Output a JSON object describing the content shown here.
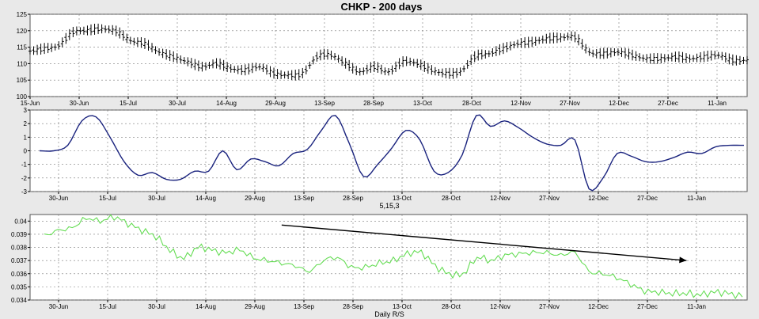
{
  "chart_data": [
    {
      "type": "line",
      "title": "CHKP - 200 days",
      "subtype": "ohlc",
      "x_tick_labels": [
        "15-Jun",
        "30-Jun",
        "15-Jul",
        "30-Jul",
        "14-Aug",
        "29-Aug",
        "13-Sep",
        "28-Sep",
        "13-Oct",
        "28-Oct",
        "12-Nov",
        "27-Nov",
        "12-Dec",
        "27-Dec",
        "11-Jan"
      ],
      "ylim": [
        100,
        125
      ],
      "y_ticks": [
        100,
        105,
        110,
        115,
        120,
        125
      ],
      "grid": true,
      "series": [
        {
          "x": [
            0.0,
            0.02,
            0.04,
            0.06,
            0.08,
            0.1,
            0.12,
            0.14,
            0.16,
            0.18,
            0.2,
            0.22,
            0.24,
            0.26,
            0.28,
            0.3,
            0.32,
            0.34,
            0.36,
            0.38,
            0.4,
            0.42,
            0.44,
            0.46,
            0.48,
            0.5,
            0.52,
            0.54,
            0.56,
            0.58,
            0.6,
            0.62,
            0.64,
            0.66,
            0.68,
            0.7,
            0.72,
            0.74,
            0.76,
            0.78,
            0.8,
            0.82,
            0.84,
            0.86,
            0.88,
            0.9,
            0.92,
            0.94,
            0.96,
            0.98,
            1.0
          ],
          "values": [
            113.8,
            114.5,
            115.5,
            119.5,
            120.0,
            120.5,
            119.8,
            117.0,
            116.0,
            113.5,
            112.0,
            110.5,
            109.0,
            110.0,
            108.5,
            108.0,
            109.0,
            107.0,
            106.5,
            107.0,
            112.0,
            112.5,
            110.0,
            107.5,
            109.0,
            107.5,
            110.5,
            110.0,
            108.0,
            107.0,
            107.5,
            112.0,
            113.0,
            114.5,
            116.0,
            116.5,
            117.5,
            117.8,
            118.0,
            113.5,
            113.0,
            113.5,
            112.5,
            111.5,
            111.5,
            112.0,
            111.5,
            112.0,
            112.5,
            111.0,
            111.0
          ]
        }
      ]
    },
    {
      "type": "line",
      "xlabel": "5,15,3",
      "x_tick_labels": [
        "30-Jun",
        "15-Jul",
        "30-Jul",
        "14-Aug",
        "29-Aug",
        "13-Sep",
        "28-Sep",
        "13-Oct",
        "28-Oct",
        "12-Nov",
        "27-Nov",
        "12-Dec",
        "27-Dec",
        "11-Jan"
      ],
      "ylim": [
        -3,
        3
      ],
      "y_ticks": [
        -3,
        -2,
        -1,
        0,
        1,
        2,
        3
      ],
      "grid": true,
      "series": [
        {
          "x": [
            0.0,
            0.02,
            0.04,
            0.06,
            0.08,
            0.1,
            0.12,
            0.14,
            0.16,
            0.18,
            0.2,
            0.22,
            0.24,
            0.26,
            0.28,
            0.3,
            0.32,
            0.34,
            0.36,
            0.38,
            0.4,
            0.42,
            0.44,
            0.46,
            0.48,
            0.5,
            0.52,
            0.54,
            0.56,
            0.58,
            0.6,
            0.62,
            0.64,
            0.66,
            0.68,
            0.7,
            0.72,
            0.74,
            0.76,
            0.78,
            0.8,
            0.82,
            0.84,
            0.86,
            0.88,
            0.9,
            0.92,
            0.94,
            0.96,
            0.98,
            1.0
          ],
          "values": [
            0.0,
            0.0,
            0.4,
            2.2,
            2.5,
            1.0,
            -0.8,
            -1.8,
            -1.6,
            -2.1,
            -2.1,
            -1.5,
            -1.5,
            0.0,
            -1.4,
            -0.6,
            -0.8,
            -1.1,
            -0.2,
            0.1,
            1.5,
            2.6,
            0.5,
            -1.9,
            -1.0,
            0.2,
            1.5,
            0.8,
            -1.5,
            -1.6,
            -0.3,
            2.6,
            1.8,
            2.2,
            1.7,
            1.0,
            0.5,
            0.4,
            0.8,
            -2.8,
            -2.0,
            -0.2,
            -0.4,
            -0.8,
            -0.8,
            -0.5,
            -0.1,
            -0.2,
            0.3,
            0.4,
            0.4
          ]
        }
      ]
    },
    {
      "type": "line",
      "xlabel": "Daily R/S",
      "x_tick_labels": [
        "30-Jun",
        "15-Jul",
        "30-Jul",
        "14-Aug",
        "29-Aug",
        "13-Sep",
        "28-Sep",
        "13-Oct",
        "28-Oct",
        "12-Nov",
        "27-Nov",
        "12-Dec",
        "27-Dec",
        "11-Jan"
      ],
      "ylim": [
        0.034,
        0.0405
      ],
      "y_ticks": [
        0.034,
        0.035,
        0.036,
        0.037,
        0.038,
        0.039,
        0.04
      ],
      "grid": true,
      "series": [
        {
          "x": [
            0.0,
            0.02,
            0.04,
            0.06,
            0.08,
            0.1,
            0.12,
            0.14,
            0.16,
            0.18,
            0.2,
            0.22,
            0.24,
            0.26,
            0.28,
            0.3,
            0.32,
            0.34,
            0.36,
            0.38,
            0.4,
            0.42,
            0.44,
            0.46,
            0.48,
            0.5,
            0.52,
            0.54,
            0.56,
            0.58,
            0.6,
            0.62,
            0.64,
            0.66,
            0.68,
            0.7,
            0.72,
            0.74,
            0.76,
            0.78,
            0.8,
            0.82,
            0.84,
            0.86,
            0.88,
            0.9,
            0.92,
            0.94,
            0.96,
            0.98,
            1.0
          ],
          "values": [
            0.0389,
            0.0393,
            0.0395,
            0.0402,
            0.04,
            0.0403,
            0.0398,
            0.0393,
            0.0388,
            0.0378,
            0.0372,
            0.038,
            0.0378,
            0.0376,
            0.0378,
            0.0372,
            0.037,
            0.0368,
            0.0366,
            0.0362,
            0.037,
            0.0372,
            0.0365,
            0.0365,
            0.0368,
            0.037,
            0.0375,
            0.0376,
            0.0366,
            0.036,
            0.036,
            0.0372,
            0.037,
            0.0374,
            0.0375,
            0.0376,
            0.0376,
            0.0374,
            0.0376,
            0.0362,
            0.036,
            0.0357,
            0.0352,
            0.0347,
            0.0346,
            0.0345,
            0.0345,
            0.0344,
            0.0346,
            0.0345,
            0.0343
          ]
        }
      ],
      "annotations": [
        {
          "type": "arrow",
          "from": [
            0.34,
            0.0397
          ],
          "to": [
            0.92,
            0.037
          ],
          "color": "#000000"
        }
      ]
    }
  ],
  "colors": {
    "price_bars": "#000000",
    "oscillator": "#1a237e",
    "rs_line": "#66dd55",
    "grid": "#7a7a7a",
    "background": "#ffffff",
    "frame": "#e9e9e9"
  }
}
